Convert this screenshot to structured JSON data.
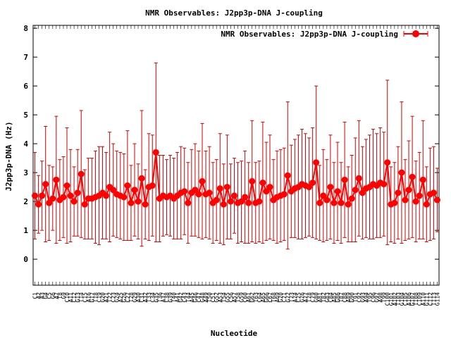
{
  "chart_data": {
    "type": "line",
    "title": "NMR Observables: J2pp3p-DNA J-coupling",
    "xlabel": "Nucleotide",
    "ylabel": "J2pp3p-DNA (Hz)",
    "ylim": [
      -0.9,
      8.1
    ],
    "yticks": [
      0,
      1,
      2,
      3,
      4,
      5,
      6,
      7,
      8
    ],
    "legend": {
      "position": "top-right",
      "label": "NMR Observables: J2pp3p-DNA J-coupling"
    },
    "colors": {
      "series": "#ff0000",
      "errorbar": "#d00000",
      "axis": "#000000"
    },
    "grid": false,
    "series": [
      {
        "name": "NMR Observables: J2pp3p-DNA J-coupling",
        "values": [
          2.2,
          1.9,
          2.2,
          2.6,
          1.95,
          2.1,
          2.75,
          2.05,
          2.15,
          2.55,
          2.2,
          2.0,
          2.3,
          2.95,
          1.9,
          2.1,
          2.1,
          2.15,
          2.2,
          2.3,
          2.2,
          2.5,
          2.4,
          2.25,
          2.2,
          2.15,
          2.55,
          1.95,
          2.4,
          2.0,
          2.8,
          1.9,
          2.5,
          2.55,
          3.7,
          2.1,
          2.2,
          2.15,
          2.2,
          2.1,
          2.2,
          2.3,
          2.35,
          1.95,
          2.3,
          2.4,
          2.25,
          2.7,
          2.25,
          2.3,
          1.95,
          2.05,
          2.45,
          1.9,
          2.5,
          2.0,
          2.2,
          1.95,
          2.0,
          2.15,
          1.95,
          2.7,
          1.95,
          2.0,
          2.65,
          2.35,
          2.5,
          2.05,
          2.15,
          2.2,
          2.25,
          2.9,
          2.35,
          2.45,
          2.5,
          2.6,
          2.55,
          2.5,
          2.65,
          3.35,
          1.95,
          2.2,
          2.05,
          2.5,
          1.95,
          2.35,
          1.95,
          2.75,
          1.9,
          2.1,
          2.4,
          2.8,
          2.3,
          2.45,
          2.5,
          2.6,
          2.55,
          2.65,
          2.6,
          3.35,
          1.9,
          1.95,
          2.3,
          3.0,
          2.05,
          2.4,
          2.85,
          2.0,
          2.2,
          2.75,
          1.9,
          2.25,
          2.3,
          2.05
        ],
        "errors": [
          1.5,
          1.0,
          1.2,
          2.0,
          1.3,
          1.1,
          2.2,
          1.4,
          1.4,
          2.0,
          1.6,
          1.2,
          1.5,
          2.2,
          1.2,
          1.4,
          1.4,
          1.6,
          1.7,
          1.6,
          1.5,
          1.9,
          1.6,
          1.5,
          1.5,
          1.5,
          1.9,
          1.3,
          1.6,
          1.3,
          2.35,
          1.2,
          1.85,
          1.75,
          3.1,
          1.5,
          1.4,
          1.3,
          1.4,
          1.4,
          1.5,
          1.6,
          1.5,
          1.4,
          1.5,
          1.6,
          1.5,
          2.0,
          1.5,
          1.6,
          1.4,
          1.4,
          1.9,
          1.4,
          1.8,
          1.3,
          1.3,
          1.4,
          1.4,
          1.6,
          1.4,
          2.1,
          1.4,
          1.4,
          2.1,
          1.7,
          1.8,
          1.4,
          1.6,
          1.6,
          1.6,
          2.55,
          1.6,
          1.7,
          1.8,
          1.9,
          1.8,
          1.7,
          1.9,
          2.65,
          1.3,
          1.6,
          1.4,
          1.8,
          1.4,
          1.7,
          1.4,
          2.0,
          1.3,
          1.5,
          1.8,
          2.0,
          1.6,
          1.7,
          1.8,
          1.9,
          1.8,
          1.9,
          1.8,
          2.85,
          1.3,
          1.4,
          1.6,
          2.45,
          1.4,
          1.7,
          2.1,
          1.4,
          1.5,
          2.05,
          1.3,
          1.6,
          1.6,
          1.1
        ],
        "categories": [
          "C1",
          "A2",
          "A3",
          "G4",
          "C5",
          "G6",
          "A7",
          "T8",
          "G9",
          "C10",
          "A11",
          "C12",
          "G13",
          "T14",
          "C15",
          "A16",
          "G17",
          "T18",
          "C19",
          "G20",
          "A21",
          "T22",
          "C23",
          "G24",
          "A25",
          "G26",
          "C27",
          "T28",
          "G29",
          "A30",
          "C31",
          "A32",
          "T33",
          "C34",
          "G35",
          "T36",
          "A37",
          "C38",
          "G39",
          "T40",
          "A41",
          "G42",
          "C43",
          "T44",
          "A45",
          "G46",
          "C47",
          "G48",
          "A49",
          "T50",
          "C51",
          "G52",
          "A53",
          "T54",
          "G55",
          "C56",
          "A57",
          "T58",
          "G59",
          "C60",
          "A61",
          "G62",
          "T63",
          "C64",
          "A65",
          "G66",
          "C67",
          "T68",
          "A69",
          "G70",
          "C71",
          "G72",
          "T73",
          "A74",
          "C75",
          "G76",
          "A77",
          "T78",
          "C79",
          "G80",
          "A81",
          "T82",
          "G83",
          "C84",
          "A85",
          "G86",
          "T87",
          "C88",
          "A89",
          "G90",
          "T91",
          "C92",
          "G93",
          "A94",
          "T95",
          "C96",
          "G97",
          "A98",
          "T99",
          "C100",
          "G101",
          "A102",
          "T103",
          "G104",
          "C105",
          "A106",
          "G107",
          "T108",
          "C109",
          "A110",
          "G111",
          "C112",
          "T113",
          "G114"
        ]
      }
    ]
  }
}
